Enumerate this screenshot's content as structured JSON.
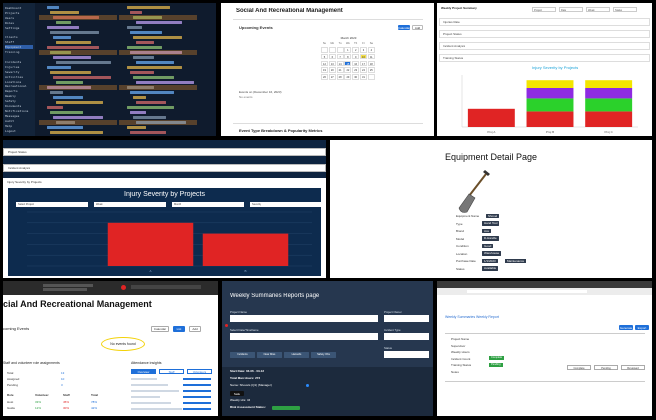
{
  "tile1": {
    "sidebar_items": [
      "Dashboard",
      "Projects",
      "Users",
      "Roles",
      "Settings",
      "",
      "Clients",
      "Staff",
      "Equipment",
      "Training",
      "",
      "Incidents",
      "Injuries",
      "Severity",
      "Activities",
      "Locations",
      "Recreational",
      "Reports",
      "Weekly",
      "Safety",
      "Documents",
      "Notifications",
      "Messages",
      "Audit",
      "Help",
      "Logout"
    ],
    "active_index": 8
  },
  "tile2": {
    "title": "Social And Recreational Management",
    "section": "Upcoming Events",
    "btn_left": "Calendar",
    "btn_right": "Add",
    "calendar_month": "March 2023",
    "weekday_labels": [
      "Su",
      "Mo",
      "Tu",
      "We",
      "Th",
      "Fr",
      "Sa"
    ],
    "days": [
      "",
      "",
      "",
      "1",
      "2",
      "3",
      "4",
      "5",
      "6",
      "7",
      "8",
      "9",
      "10",
      "11",
      "12",
      "13",
      "14",
      "15",
      "16",
      "17",
      "18",
      "19",
      "20",
      "21",
      "22",
      "23",
      "24",
      "25",
      "26",
      "27",
      "28",
      "29",
      "30",
      "31",
      ""
    ],
    "selected_day": "15",
    "highlight_day": "10",
    "event_text": "Events on (December 16, 2023)",
    "no_events": "No events",
    "footer": "Event Type Breakdown & Popularity Metrics"
  },
  "tile3": {
    "title": "Weekly Project Summary",
    "filters": [
      "Project",
      "Date",
      "Week",
      "Status"
    ],
    "fields": [
      "Injuries Rate",
      "Project Status",
      "Incident Analysis",
      "Training Status"
    ],
    "chart_title": "Injury Severity by Projects",
    "chart_data": {
      "type": "bar",
      "title": "Injury Severity by Projects",
      "categories": [
        "Proj A",
        "Proj B",
        "Proj C"
      ],
      "series": [
        {
          "name": "",
          "color": "#e02424",
          "values": [
            35,
            30,
            30
          ]
        },
        {
          "name": "",
          "color": "#2bd12b",
          "values": [
            0,
            25,
            25
          ]
        },
        {
          "name": "",
          "color": "#8e2be2",
          "values": [
            0,
            20,
            20
          ]
        },
        {
          "name": "",
          "color": "#f3e600",
          "values": [
            0,
            15,
            15
          ]
        }
      ],
      "ylim": [
        0,
        100
      ]
    }
  },
  "tile4": {
    "field1": "Project Status",
    "field2": "Incident Analysis",
    "section": "Injury Severity by Projects",
    "chart_title": "Injury Severity by Projects",
    "filters": [
      "Select Project",
      "Week",
      "Month",
      "Severity"
    ],
    "chart_data": {
      "type": "bar",
      "title": "Injury Severity by Projects",
      "categories": [
        "A",
        "B"
      ],
      "values": [
        4,
        3
      ],
      "ylim": [
        0,
        5
      ]
    }
  },
  "tile5": {
    "title": "Equipment Detail Page",
    "rows": [
      {
        "label": "Equipment Name",
        "value": "Shovel"
      },
      {
        "label": "Type",
        "value": "Hand Tool"
      },
      {
        "label": "Brand",
        "value": "Ace"
      },
      {
        "label": "Model",
        "value": "D-Handle"
      },
      {
        "label": "Condition",
        "value": "Good"
      },
      {
        "label": "Location",
        "value": "Warehouse"
      },
      {
        "label": "Purchase Date",
        "value": "1/1/2023"
      },
      {
        "label": "Status",
        "value": "Available"
      }
    ],
    "extra_value": "Maintenance"
  },
  "tile6": {
    "title": "cial And Recreational Management",
    "section": "coming Events",
    "btn_cal": "Calendar",
    "btn_list": "List",
    "btn_add": "Add",
    "callout": "No events found",
    "left_card_title": "Staff and volunteer role assignments",
    "right_card_title": "Attendance insights",
    "tabs": [
      "Overview",
      "Staff",
      "Volunteers"
    ],
    "stats": [
      {
        "label": "Total",
        "value": "13"
      },
      {
        "label": "Assigned",
        "value": "10"
      },
      {
        "label": "Pending",
        "value": "3"
      }
    ],
    "table_headers": [
      "Role",
      "Volunteer",
      "Staff",
      "Total"
    ],
    "table_rows": [
      [
        "Host",
        "33%",
        "45%",
        "78%"
      ],
      [
        "Guide",
        "12%",
        "30%",
        "42%"
      ]
    ]
  },
  "tile7": {
    "title": "Weekly Summaries Reports page",
    "field_labels": [
      "Project Name",
      "Project Owner",
      "Select Date/Timeframe",
      "Incident Type",
      "Status"
    ],
    "tab_buttons": [
      "Incidents",
      "Near Miss",
      "Hazards",
      "Safety Obs"
    ],
    "week_range": "Start Date: 03-06 - 03-12",
    "total_hours": "Total Man Hours: 272",
    "info_line": "Name: Shovels (Q1) (Manager)",
    "badge": "Safe",
    "daily_line": "Weekly Hrs: 34",
    "assessment": "Risk Assessment Status:"
  },
  "tile8": {
    "page_title": "Weekly Summaries Weekly Report",
    "btn_primary": "Generate",
    "btn_secondary": "Export",
    "rows": [
      "Project Name",
      "Supervisor",
      "Weekly Hours",
      "Incident Count",
      "Training Status",
      "Notes"
    ],
    "status_values": [
      "Complete",
      "Pending",
      "Reviewed"
    ]
  }
}
